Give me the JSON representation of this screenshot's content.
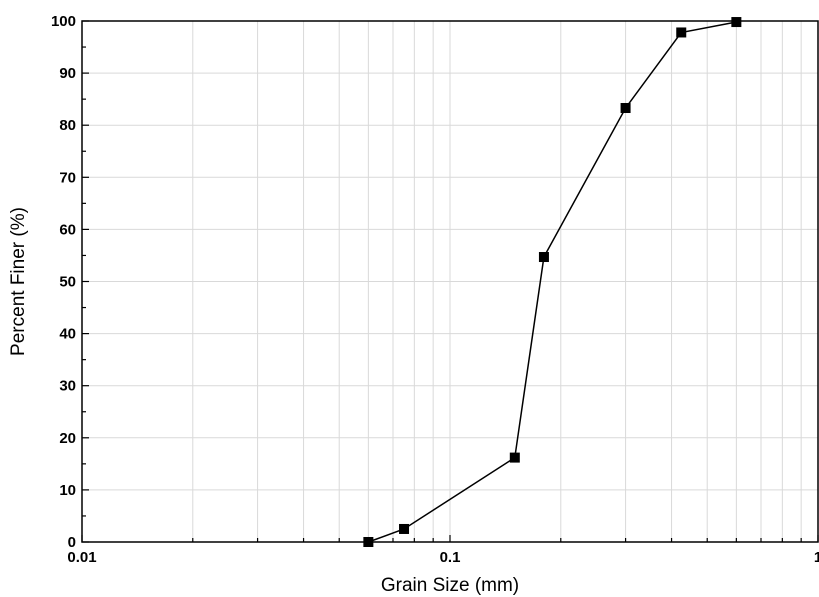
{
  "chart_data": {
    "type": "scatter",
    "title": "",
    "xlabel": "Grain Size (mm)",
    "ylabel": "Percent Finer (%)",
    "xscale": "log",
    "xlim": [
      0.01,
      1
    ],
    "ylim": [
      0,
      100
    ],
    "grid": true,
    "x_ticks": [
      {
        "value": 0.01,
        "label": "0.01"
      },
      {
        "value": 0.1,
        "label": "0.1"
      },
      {
        "value": 1,
        "label": "1"
      }
    ],
    "y_ticks": [
      {
        "value": 0,
        "label": "0"
      },
      {
        "value": 10,
        "label": "10"
      },
      {
        "value": 20,
        "label": "20"
      },
      {
        "value": 30,
        "label": "30"
      },
      {
        "value": 40,
        "label": "40"
      },
      {
        "value": 50,
        "label": "50"
      },
      {
        "value": 60,
        "label": "60"
      },
      {
        "value": 70,
        "label": "70"
      },
      {
        "value": 80,
        "label": "80"
      },
      {
        "value": 90,
        "label": "90"
      },
      {
        "value": 100,
        "label": "100"
      }
    ],
    "series": [
      {
        "marker": "square",
        "line": true,
        "color": "#000000",
        "x": [
          0.06,
          0.075,
          0.15,
          0.18,
          0.3,
          0.425,
          0.6
        ],
        "y": [
          0,
          2.5,
          16.2,
          54.7,
          83.3,
          97.8,
          99.8
        ]
      }
    ]
  }
}
